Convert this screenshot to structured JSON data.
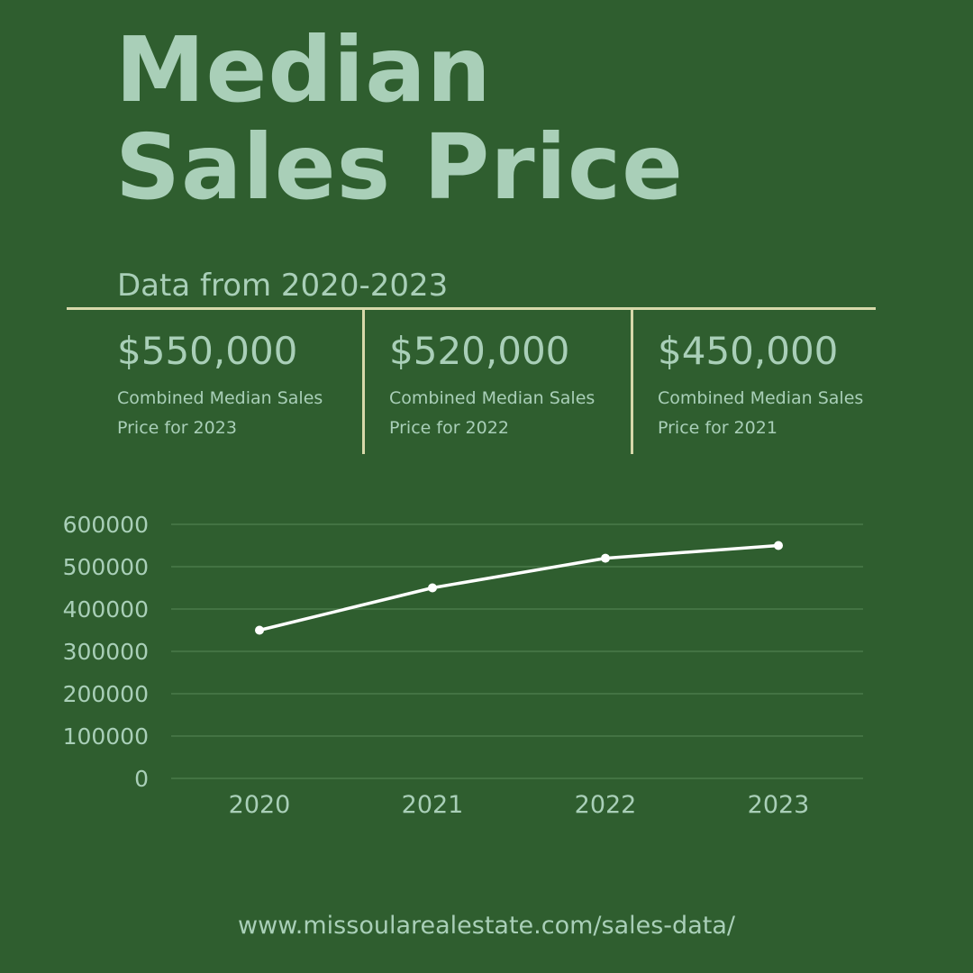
{
  "header": {
    "title_line1": "Median",
    "title_line2": "Sales Price",
    "subtitle": "Data from 2020-2023"
  },
  "stats": [
    {
      "value": "$550,000",
      "label": "Combined Median Sales Price for 2023"
    },
    {
      "value": "$520,000",
      "label": "Combined Median Sales Price for 2022"
    },
    {
      "value": "$450,000",
      "label": "Combined Median Sales Price for 2021"
    }
  ],
  "footer": {
    "url": "www.missoularealestate.com/sales-data/"
  },
  "colors": {
    "background": "#2f5e2f",
    "text": "#a9cfb8",
    "rule": "#d7d8aa",
    "line": "#ffffff",
    "grid": "#4a7a4a"
  },
  "chart_data": {
    "type": "line",
    "x": [
      "2020",
      "2021",
      "2022",
      "2023"
    ],
    "series": [
      {
        "values": [
          350000,
          450000,
          520000,
          550000
        ]
      }
    ],
    "yticks": [
      "0",
      "100000",
      "200000",
      "300000",
      "400000",
      "500000",
      "600000"
    ],
    "ylim": [
      0,
      600000
    ],
    "grid": true,
    "legend": "none",
    "title": "",
    "xlabel": "",
    "ylabel": ""
  }
}
